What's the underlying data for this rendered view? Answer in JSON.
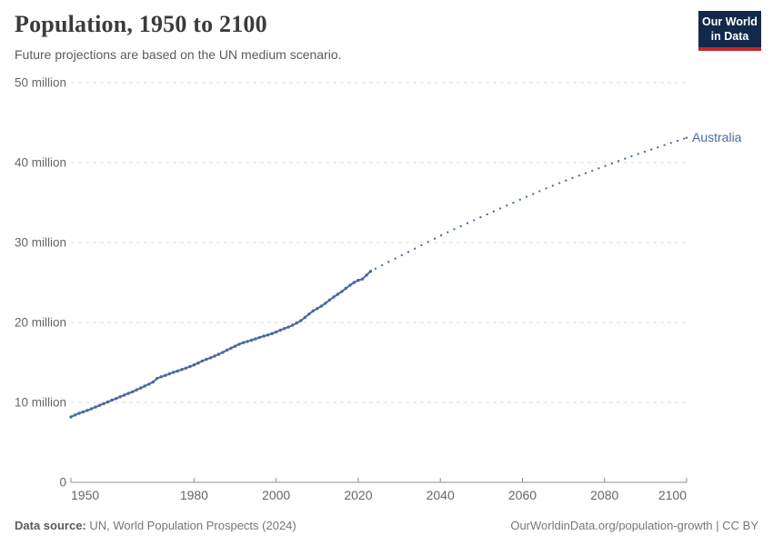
{
  "header": {
    "title": "Population, 1950 to 2100",
    "subtitle": "Future projections are based on the UN medium scenario."
  },
  "logo": {
    "line1": "Our World",
    "line2": "in Data",
    "bg_color": "#13294b",
    "accent_color": "#c0282d"
  },
  "chart_data": {
    "type": "line",
    "title": "Population, 1950 to 2100",
    "subtitle": "Future projections are based on the UN medium scenario.",
    "entity": "Australia",
    "unit": "million",
    "line_color": "#4c6a9e",
    "grid_color": "#dcdcdc",
    "axis_color": "#8f8f8f",
    "tick_label_color": "#666666",
    "grid": true,
    "legend_position": "end-of-line-label",
    "xlim": [
      1950,
      2100
    ],
    "ylim_million": [
      0,
      50
    ],
    "x_ticks": [
      1950,
      1980,
      2000,
      2020,
      2040,
      2060,
      2080,
      2100
    ],
    "y_ticks_million": [
      0,
      10,
      20,
      30,
      40,
      50
    ],
    "y_tick_suffix": " million",
    "series": [
      {
        "name": "Australia (historical estimates)",
        "style": "solid-beaded",
        "points": [
          [
            1950,
            8.18
          ],
          [
            1951,
            8.42
          ],
          [
            1952,
            8.64
          ],
          [
            1953,
            8.82
          ],
          [
            1954,
            9.0
          ],
          [
            1955,
            9.21
          ],
          [
            1956,
            9.42
          ],
          [
            1957,
            9.64
          ],
          [
            1958,
            9.84
          ],
          [
            1959,
            10.06
          ],
          [
            1960,
            10.28
          ],
          [
            1961,
            10.48
          ],
          [
            1962,
            10.7
          ],
          [
            1963,
            10.91
          ],
          [
            1964,
            11.12
          ],
          [
            1965,
            11.33
          ],
          [
            1966,
            11.57
          ],
          [
            1967,
            11.8
          ],
          [
            1968,
            12.04
          ],
          [
            1969,
            12.28
          ],
          [
            1970,
            12.54
          ],
          [
            1971,
            13.0
          ],
          [
            1972,
            13.2
          ],
          [
            1973,
            13.38
          ],
          [
            1974,
            13.57
          ],
          [
            1975,
            13.77
          ],
          [
            1976,
            13.92
          ],
          [
            1977,
            14.11
          ],
          [
            1978,
            14.28
          ],
          [
            1979,
            14.48
          ],
          [
            1980,
            14.69
          ],
          [
            1981,
            14.92
          ],
          [
            1982,
            15.18
          ],
          [
            1983,
            15.39
          ],
          [
            1984,
            15.58
          ],
          [
            1985,
            15.79
          ],
          [
            1986,
            16.02
          ],
          [
            1987,
            16.26
          ],
          [
            1988,
            16.53
          ],
          [
            1989,
            16.78
          ],
          [
            1990,
            17.02
          ],
          [
            1991,
            17.28
          ],
          [
            1992,
            17.48
          ],
          [
            1993,
            17.63
          ],
          [
            1994,
            17.78
          ],
          [
            1995,
            17.96
          ],
          [
            1996,
            18.14
          ],
          [
            1997,
            18.29
          ],
          [
            1998,
            18.43
          ],
          [
            1999,
            18.61
          ],
          [
            2000,
            18.81
          ],
          [
            2001,
            19.03
          ],
          [
            2002,
            19.24
          ],
          [
            2003,
            19.42
          ],
          [
            2004,
            19.66
          ],
          [
            2005,
            19.93
          ],
          [
            2006,
            20.22
          ],
          [
            2007,
            20.63
          ],
          [
            2008,
            21.05
          ],
          [
            2009,
            21.44
          ],
          [
            2010,
            21.74
          ],
          [
            2011,
            22.03
          ],
          [
            2012,
            22.4
          ],
          [
            2013,
            22.8
          ],
          [
            2014,
            23.18
          ],
          [
            2015,
            23.52
          ],
          [
            2016,
            23.88
          ],
          [
            2017,
            24.27
          ],
          [
            2018,
            24.66
          ],
          [
            2019,
            25.0
          ],
          [
            2020,
            25.27
          ],
          [
            2021,
            25.42
          ],
          [
            2022,
            25.92
          ],
          [
            2023,
            26.4
          ]
        ]
      },
      {
        "name": "Australia (UN medium projection)",
        "style": "dotted",
        "points": [
          [
            2023,
            26.4
          ],
          [
            2025,
            26.95
          ],
          [
            2030,
            28.25
          ],
          [
            2035,
            29.55
          ],
          [
            2040,
            30.85
          ],
          [
            2045,
            32.05
          ],
          [
            2050,
            33.2
          ],
          [
            2055,
            34.35
          ],
          [
            2060,
            35.5
          ],
          [
            2065,
            36.6
          ],
          [
            2070,
            37.65
          ],
          [
            2075,
            38.6
          ],
          [
            2080,
            39.55
          ],
          [
            2085,
            40.5
          ],
          [
            2090,
            41.4
          ],
          [
            2095,
            42.25
          ],
          [
            2100,
            43.1
          ]
        ]
      }
    ]
  },
  "footer": {
    "datasource_label": "Data source:",
    "datasource_value": " UN, World Population Prospects (2024)",
    "credit": "OurWorldinData.org/population-growth | CC BY"
  }
}
